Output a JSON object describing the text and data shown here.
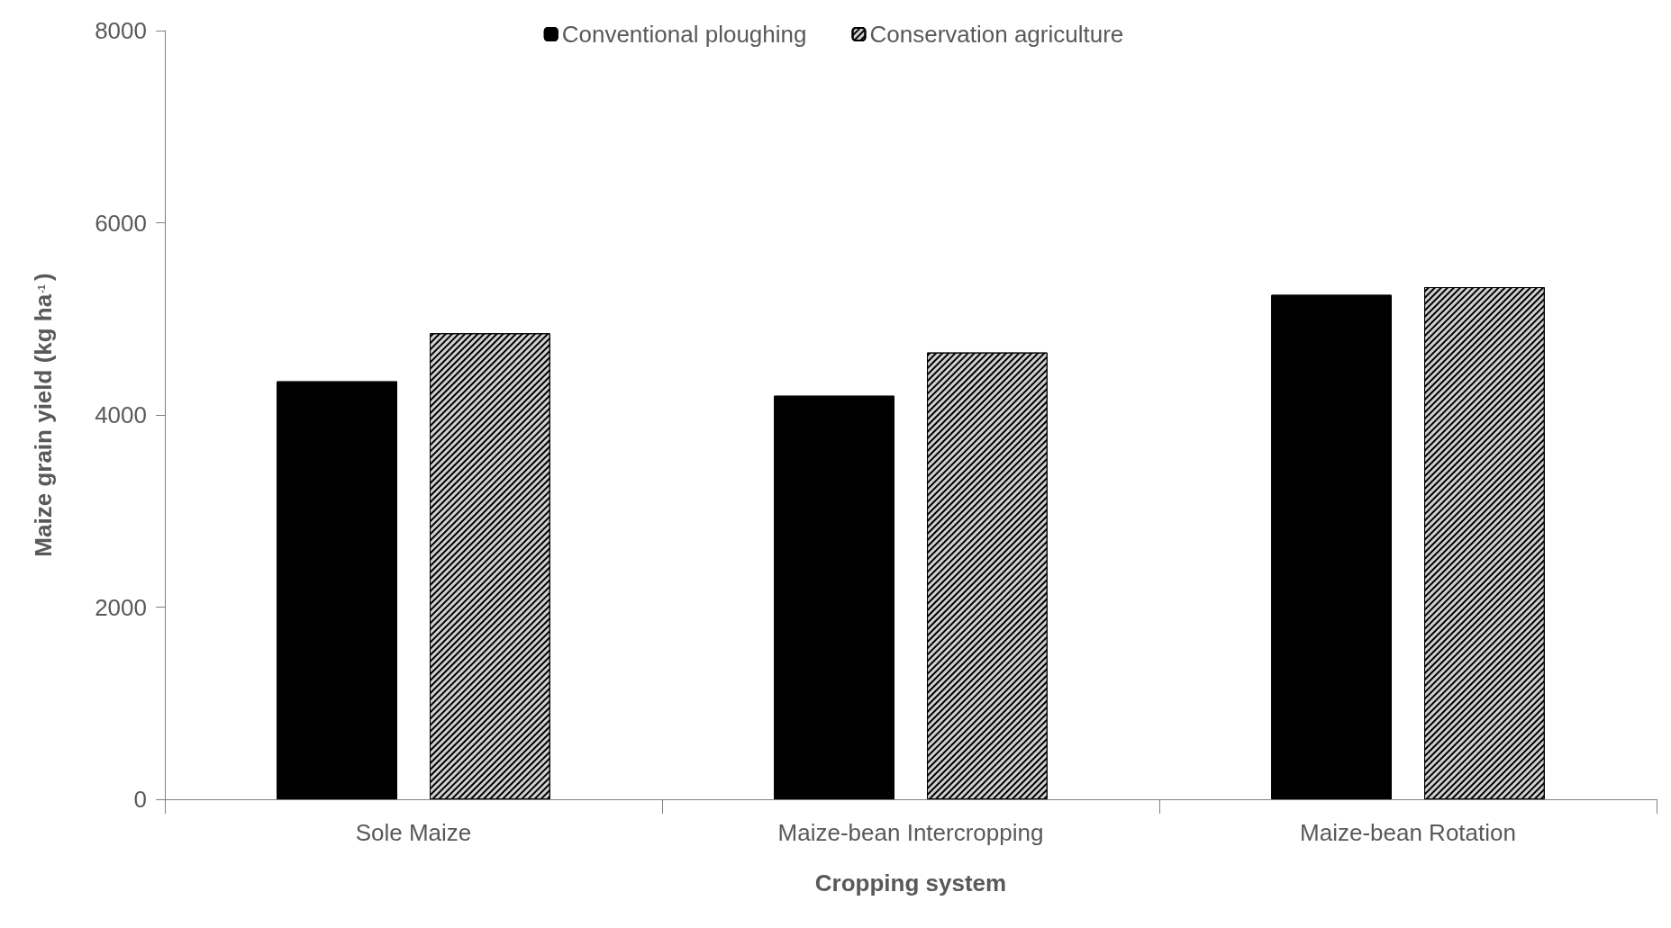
{
  "chart_data": {
    "type": "bar",
    "xlabel": "Cropping system",
    "ylabel": "Maize grain yield (kg ha$^{-1}$)",
    "categories": [
      "Sole Maize",
      "Maize-bean Intercropping",
      "Maize-bean Rotation"
    ],
    "series": [
      {
        "name": "Conventional ploughing",
        "color": "#000000",
        "values": [
          4350,
          4200,
          5250
        ]
      },
      {
        "name": "Conservation agriculture",
        "color": "#d0d0d0",
        "values": [
          4850,
          4650,
          5330
        ]
      }
    ],
    "ylim": [
      0,
      8000
    ],
    "yticks": [
      0,
      2000,
      4000,
      6000,
      8000
    ],
    "grid": false,
    "legend": "top"
  }
}
